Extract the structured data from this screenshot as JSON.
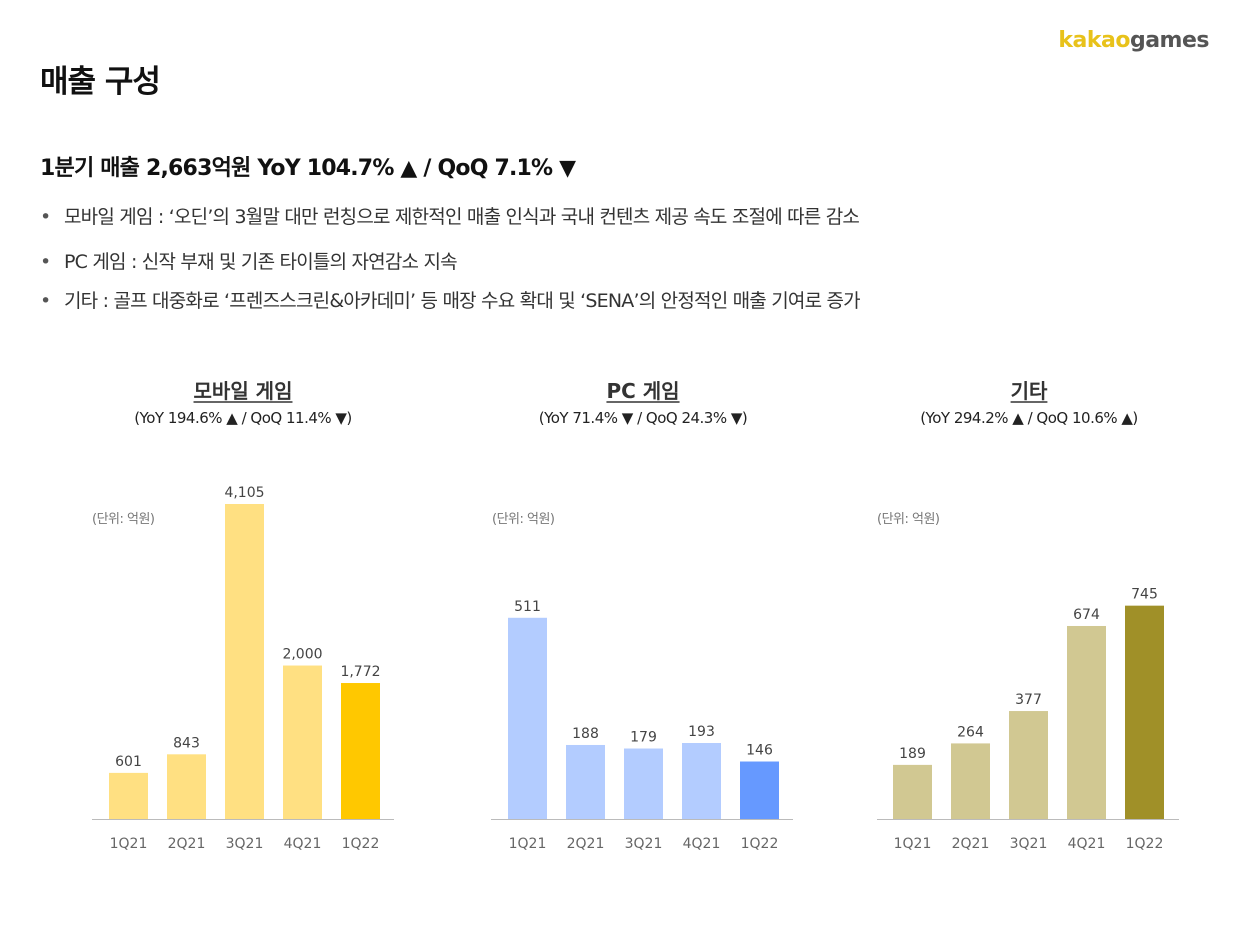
{
  "logo": {
    "part1": "kakao",
    "part2": "games"
  },
  "page_title": "매출 구성",
  "summary": "1분기 매출 2,663억원 YoY 104.7% ▲ / QoQ 7.1% ▼",
  "bullets": [
    "모바일 게임 : ‘오딘’의 3월말 대만 런칭으로 제한적인 매출 인식과 국내 컨텐츠 제공 속도 조절에 따른 감소",
    "PC 게임 : 신작 부재 및 기존 타이틀의 자연감소 지속",
    "기타 : 골프 대중화로 ‘프렌즈스크린&아카데미’ 등 매장 수요 확대 및 ‘SENA’의 안정적인 매출 기여로 증가"
  ],
  "colors": {
    "mobile": "#FFE082",
    "mobile_highlight": "#FFC800",
    "pc": "#B3CCFF",
    "pc_highlight": "#6699FF",
    "etc": "#D1C892",
    "etc_highlight": "#A09028",
    "axis": "#BBBBBB"
  },
  "chart_data": [
    {
      "type": "bar",
      "title": "모바일 게임",
      "subtitle": "(YoY 194.6% ▲ / QoQ 11.4% ▼)",
      "unit_label": "(단위: 억원)",
      "categories": [
        "1Q21",
        "2Q21",
        "3Q21",
        "4Q21",
        "1Q22"
      ],
      "values": [
        601,
        843,
        4105,
        2000,
        1772
      ],
      "value_labels": [
        "601",
        "843",
        "4,105",
        "2,000",
        "1,772"
      ],
      "ylim": [
        0,
        4105
      ],
      "highlight_index": 4
    },
    {
      "type": "bar",
      "title": "PC 게임",
      "subtitle": "(YoY 71.4% ▼ / QoQ 24.3% ▼)",
      "unit_label": "(단위: 억원)",
      "categories": [
        "1Q21",
        "2Q21",
        "3Q21",
        "4Q21",
        "1Q22"
      ],
      "values": [
        511,
        188,
        179,
        193,
        146
      ],
      "value_labels": [
        "511",
        "188",
        "179",
        "193",
        "146"
      ],
      "ylim": [
        0,
        800
      ],
      "highlight_index": 4
    },
    {
      "type": "bar",
      "title": "기타",
      "subtitle": "(YoY 294.2% ▲ / QoQ 10.6% ▲)",
      "unit_label": "(단위: 억원)",
      "categories": [
        "1Q21",
        "2Q21",
        "3Q21",
        "4Q21",
        "1Q22"
      ],
      "values": [
        189,
        264,
        377,
        674,
        745
      ],
      "value_labels": [
        "189",
        "264",
        "377",
        "674",
        "745"
      ],
      "ylim": [
        0,
        1100
      ],
      "highlight_index": 4
    }
  ]
}
